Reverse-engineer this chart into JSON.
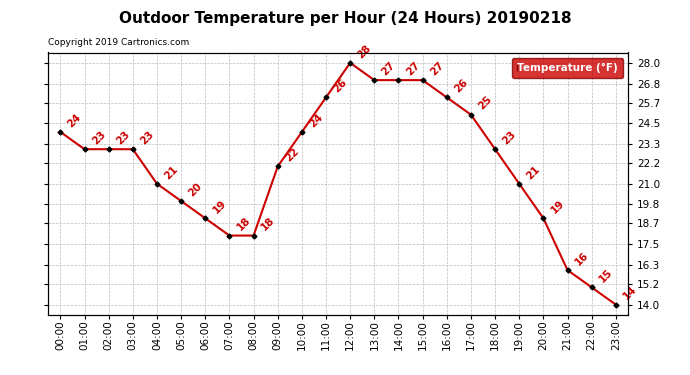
{
  "title": "Outdoor Temperature per Hour (24 Hours) 20190218",
  "copyright": "Copyright 2019 Cartronics.com",
  "legend_label": "Temperature (°F)",
  "hours": [
    "00:00",
    "01:00",
    "02:00",
    "03:00",
    "04:00",
    "05:00",
    "06:00",
    "07:00",
    "08:00",
    "09:00",
    "10:00",
    "11:00",
    "12:00",
    "13:00",
    "14:00",
    "15:00",
    "16:00",
    "17:00",
    "18:00",
    "19:00",
    "20:00",
    "21:00",
    "22:00",
    "23:00"
  ],
  "temps": [
    24,
    23,
    23,
    23,
    21,
    20,
    19,
    18,
    18,
    22,
    24,
    26,
    28,
    27,
    27,
    27,
    26,
    25,
    23,
    21,
    19,
    16,
    15,
    14
  ],
  "ylim_min": 13.4,
  "ylim_max": 28.6,
  "yticks": [
    14.0,
    15.2,
    16.3,
    17.5,
    18.7,
    19.8,
    21.0,
    22.2,
    23.3,
    24.5,
    25.7,
    26.8,
    28.0
  ],
  "line_color": "#cc0000",
  "marker_color": "#000000",
  "bg_color": "#ffffff",
  "plot_bg_color": "#ffffff",
  "grid_color": "#bbbbbb",
  "title_fontsize": 11,
  "tick_fontsize": 7.5,
  "annotation_fontsize": 7.5,
  "legend_bg": "#cc0000",
  "legend_fg": "#ffffff"
}
